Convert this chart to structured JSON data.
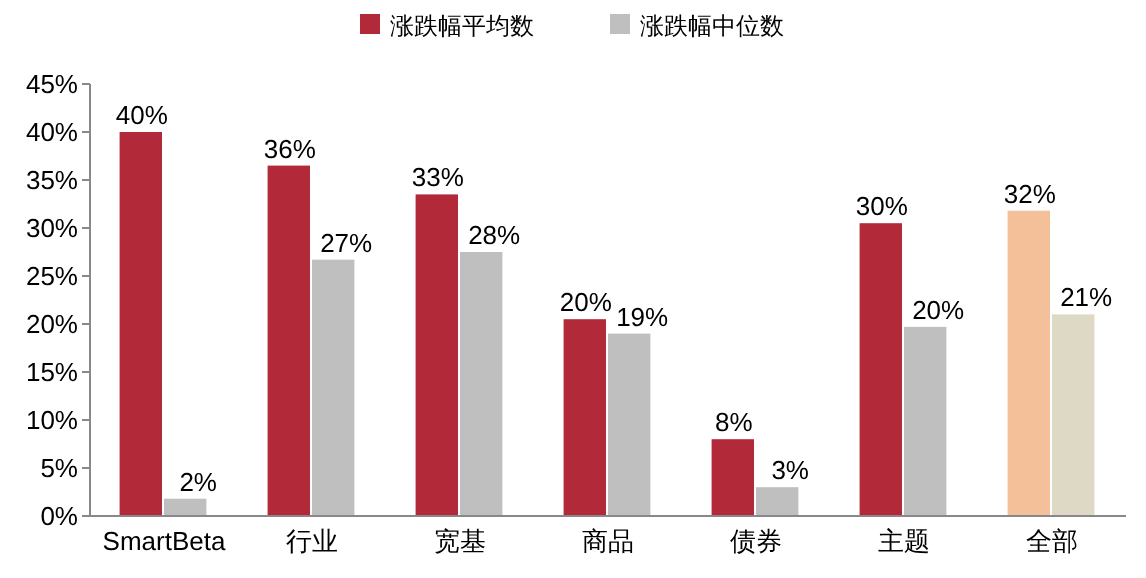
{
  "chart_data": {
    "type": "bar",
    "categories": [
      "SmartBeta",
      "行业",
      "宽基",
      "商品",
      "债券",
      "主题",
      "全部"
    ],
    "series": [
      {
        "name": "涨跌幅平均数",
        "color": "#b22a3a",
        "colors": [
          "#b22a3a",
          "#b22a3a",
          "#b22a3a",
          "#b22a3a",
          "#b22a3a",
          "#b22a3a",
          "#f4c09a"
        ],
        "values": [
          40,
          36.5,
          33.5,
          20.5,
          8,
          30.5,
          31.8
        ],
        "value_labels": [
          "40%",
          "36%",
          "33%",
          "20%",
          "8%",
          "30%",
          "32%"
        ]
      },
      {
        "name": "涨跌幅中位数",
        "color": "#bfbfbf",
        "colors": [
          "#bfbfbf",
          "#bfbfbf",
          "#bfbfbf",
          "#bfbfbf",
          "#bfbfbf",
          "#bfbfbf",
          "#ddd9c4"
        ],
        "values": [
          1.8,
          26.7,
          27.5,
          19,
          3,
          19.7,
          21
        ],
        "value_labels": [
          "2%",
          "27%",
          "28%",
          "19%",
          "3%",
          "20%",
          "21%"
        ]
      }
    ],
    "ylim": [
      0,
      45
    ],
    "yticks": [
      {
        "value": 0,
        "label": "0%"
      },
      {
        "value": 5,
        "label": "5%"
      },
      {
        "value": 10,
        "label": "10%"
      },
      {
        "value": 15,
        "label": "15%"
      },
      {
        "value": 20,
        "label": "20%"
      },
      {
        "value": 25,
        "label": "25%"
      },
      {
        "value": 30,
        "label": "30%"
      },
      {
        "value": 35,
        "label": "35%"
      },
      {
        "value": 40,
        "label": "40%"
      },
      {
        "value": 45,
        "label": "45%"
      }
    ],
    "legend": "top"
  }
}
